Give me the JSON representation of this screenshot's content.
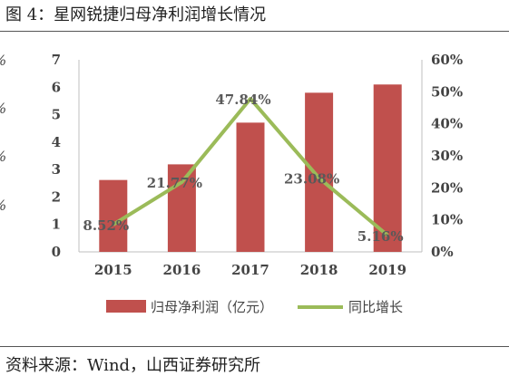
{
  "header": {
    "title": "图 4：星网锐捷归母净利润增长情况"
  },
  "footer": {
    "source": "资料来源：Wind，山西证券研究所"
  },
  "left_clipped_ticks": [
    "%",
    "%",
    "%",
    "%"
  ],
  "chart_data": {
    "type": "bar+line",
    "categories": [
      "2015",
      "2016",
      "2017",
      "2018",
      "2019"
    ],
    "series": [
      {
        "name": "归母净利润（亿元）",
        "type": "bar",
        "axis": "left",
        "values": [
          2.62,
          3.19,
          4.71,
          5.8,
          6.1
        ],
        "color": "#c0504d"
      },
      {
        "name": "同比增长",
        "type": "line",
        "axis": "right",
        "values": [
          8.52,
          21.77,
          47.84,
          23.08,
          5.16
        ],
        "color": "#9bbb59",
        "labels": [
          "8.52%",
          "21.77%",
          "47.84%",
          "23.08%",
          "5.16%"
        ]
      }
    ],
    "left_axis": {
      "ylim": [
        0,
        7
      ],
      "ticks": [
        "0",
        "1",
        "2",
        "3",
        "4",
        "5",
        "6",
        "7"
      ]
    },
    "right_axis": {
      "ylim": [
        0,
        60
      ],
      "ticks": [
        "0%",
        "10%",
        "20%",
        "30%",
        "40%",
        "50%",
        "60%"
      ]
    },
    "legend_position": "bottom",
    "grid": false
  }
}
